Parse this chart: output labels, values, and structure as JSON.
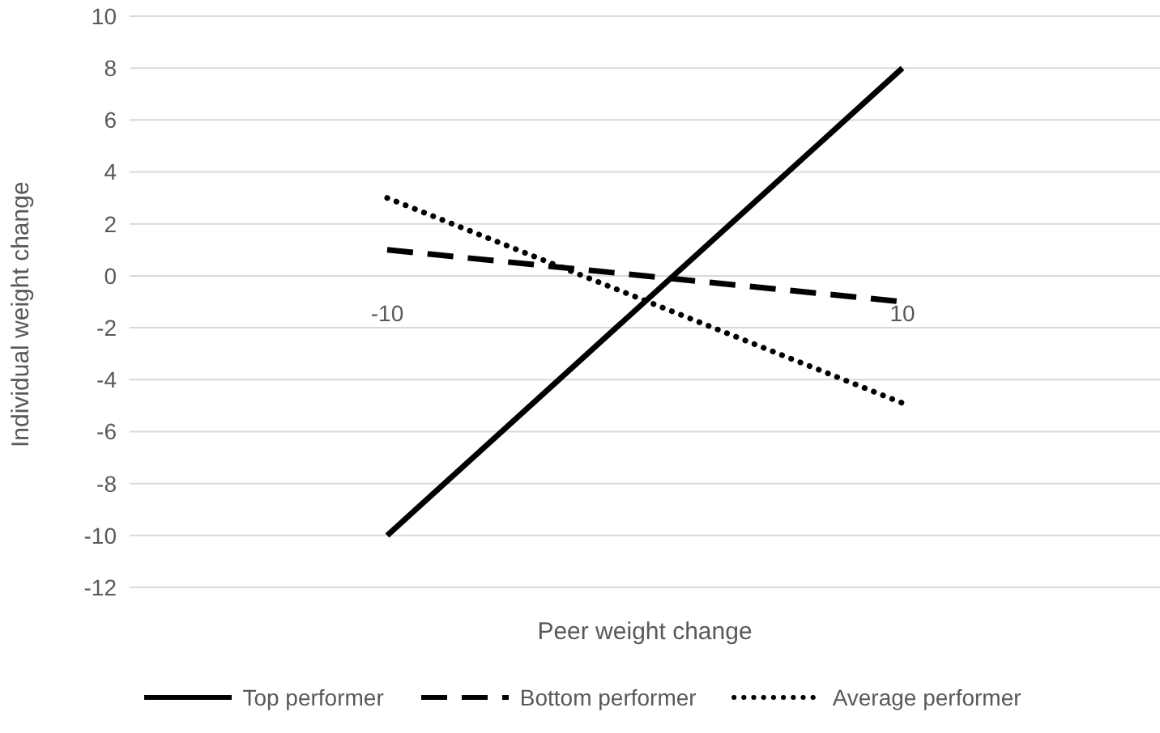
{
  "chart_data": {
    "type": "line",
    "xlabel": "Peer weight change",
    "ylabel": "Individual weight change",
    "categories": [
      "-10",
      "10"
    ],
    "series": [
      {
        "name": "Top performer",
        "color": "#000000",
        "line_style": "solid",
        "values": [
          -10,
          8
        ]
      },
      {
        "name": "Bottom performer",
        "color": "#000000",
        "line_style": "dashed",
        "values": [
          1,
          -1
        ]
      },
      {
        "name": "Average performer",
        "color": "#000000",
        "line_style": "dotted",
        "values": [
          3,
          -4.9
        ]
      }
    ],
    "ylim": [
      -12,
      10
    ],
    "yticks": [
      -12,
      -10,
      -8,
      -6,
      -4,
      -2,
      0,
      2,
      4,
      6,
      8,
      10
    ],
    "grid": "y",
    "legend": "bottom",
    "marker": "none"
  }
}
